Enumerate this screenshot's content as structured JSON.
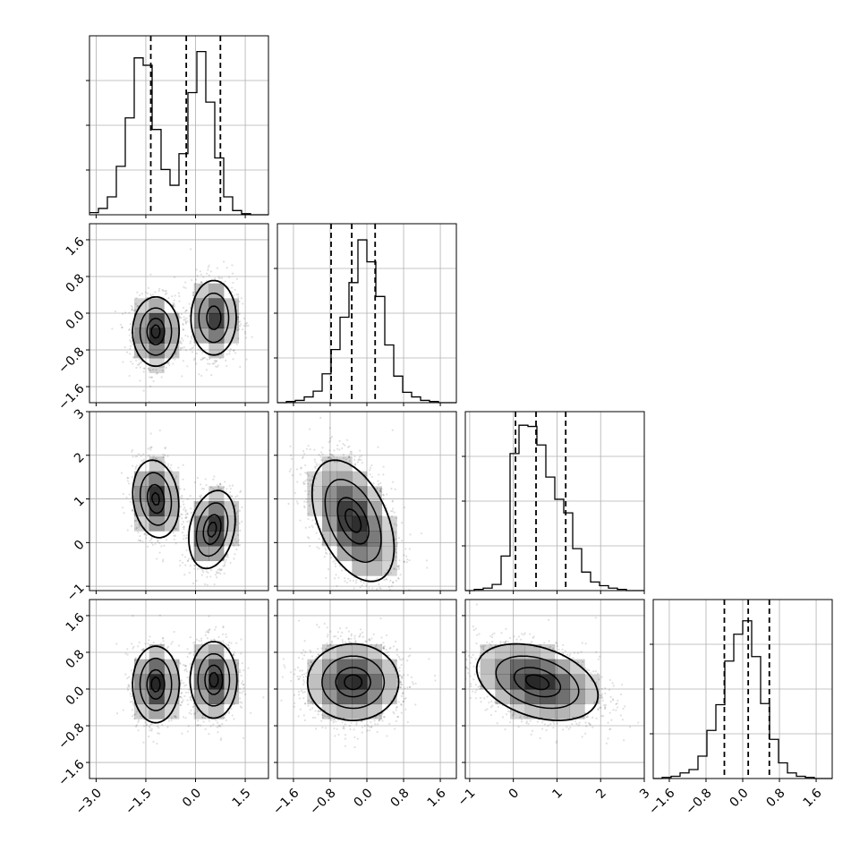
{
  "chart_data": {
    "type": "corner",
    "title": "",
    "parameters": [
      "",
      "",
      "",
      ""
    ],
    "grid": true,
    "style": {
      "line_color": "#000000",
      "grid_color": "#b0b0b0",
      "density_color": "#000000",
      "background": "#ffffff"
    },
    "ranges": [
      [
        -3.2,
        2.2
      ],
      [
        -1.95,
        1.95
      ],
      [
        -1.1,
        3.0
      ],
      [
        -1.95,
        1.95
      ]
    ],
    "ticks": [
      {
        "values": [
          -3.0,
          -1.5,
          0.0,
          1.5
        ],
        "labels": [
          "−3.0",
          "−1.5",
          "0.0",
          "1.5"
        ]
      },
      {
        "values": [
          -1.6,
          -0.8,
          0.0,
          0.8,
          1.6
        ],
        "labels": [
          "−1.6",
          "−0.8",
          "0.0",
          "0.8",
          "1.6"
        ]
      },
      {
        "values": [
          -1,
          0,
          1,
          2,
          3
        ],
        "labels": [
          "−1",
          "0",
          "1",
          "2",
          "3"
        ]
      },
      {
        "values": [
          -1.6,
          -0.8,
          0.0,
          0.8,
          1.6
        ],
        "labels": [
          "−1.6",
          "−0.8",
          "0.0",
          "0.8",
          "1.6"
        ]
      }
    ],
    "histograms": [
      {
        "param": 0,
        "edges_start": -3.2,
        "bin_width": 0.27,
        "counts": [
          2,
          6,
          17,
          46,
          92,
          149,
          142,
          81,
          43,
          28,
          58,
          116,
          155,
          107,
          54,
          17,
          4,
          1,
          0,
          0
        ],
        "quantiles": [
          -1.35,
          -0.28,
          0.75
        ],
        "ymax": 170
      },
      {
        "param": 1,
        "edges_start": -1.95,
        "bin_width": 0.195,
        "counts": [
          0,
          1,
          2,
          5,
          10,
          25,
          46,
          74,
          104,
          141,
          122,
          92,
          50,
          23,
          9,
          5,
          2,
          1,
          0,
          0
        ],
        "quantiles": [
          -0.78,
          -0.33,
          0.18
        ],
        "ymax": 155
      },
      {
        "param": 2,
        "edges_start": -1.1,
        "bin_width": 0.205,
        "counts": [
          0,
          1,
          2,
          5,
          28,
          111,
          134,
          133,
          118,
          92,
          74,
          63,
          34,
          15,
          7,
          4,
          2,
          1,
          0,
          0
        ],
        "quantiles": [
          0.05,
          0.52,
          1.2
        ],
        "ymax": 145
      },
      {
        "param": 3,
        "edges_start": -1.95,
        "bin_width": 0.195,
        "counts": [
          0,
          1,
          2,
          5,
          8,
          20,
          43,
          66,
          105,
          129,
          141,
          109,
          67,
          35,
          14,
          5,
          2,
          1,
          0,
          0
        ],
        "quantiles": [
          -0.4,
          0.12,
          0.58
        ],
        "ymax": 160
      }
    ],
    "joint": [
      {
        "x": 0,
        "y": 1,
        "components": [
          {
            "weight": 0.5,
            "mean": [
              -1.2,
              -0.4
            ],
            "sd": [
              0.35,
              0.38
            ],
            "rho": 0.0
          },
          {
            "weight": 0.5,
            "mean": [
              0.55,
              -0.1
            ],
            "sd": [
              0.35,
              0.42
            ],
            "rho": 0.0
          }
        ]
      },
      {
        "x": 0,
        "y": 2,
        "components": [
          {
            "weight": 0.5,
            "mean": [
              -1.2,
              1.0
            ],
            "sd": [
              0.35,
              0.45
            ],
            "rho": -0.15
          },
          {
            "weight": 0.5,
            "mean": [
              0.5,
              0.3
            ],
            "sd": [
              0.35,
              0.45
            ],
            "rho": 0.25
          }
        ]
      },
      {
        "x": 1,
        "y": 2,
        "components": [
          {
            "weight": 1.0,
            "mean": [
              -0.3,
              0.5
            ],
            "sd": [
              0.45,
              0.7
            ],
            "rho": -0.45
          }
        ]
      },
      {
        "x": 0,
        "y": 3,
        "components": [
          {
            "weight": 0.5,
            "mean": [
              -1.2,
              0.1
            ],
            "sd": [
              0.35,
              0.42
            ],
            "rho": 0.0
          },
          {
            "weight": 0.5,
            "mean": [
              0.55,
              0.2
            ],
            "sd": [
              0.35,
              0.42
            ],
            "rho": 0.0
          }
        ]
      },
      {
        "x": 1,
        "y": 3,
        "components": [
          {
            "weight": 1.0,
            "mean": [
              -0.3,
              0.15
            ],
            "sd": [
              0.5,
              0.42
            ],
            "rho": 0.0
          }
        ]
      },
      {
        "x": 2,
        "y": 3,
        "components": [
          {
            "weight": 1.0,
            "mean": [
              0.55,
              0.15
            ],
            "sd": [
              0.7,
              0.42
            ],
            "rho": -0.35
          }
        ]
      }
    ]
  }
}
